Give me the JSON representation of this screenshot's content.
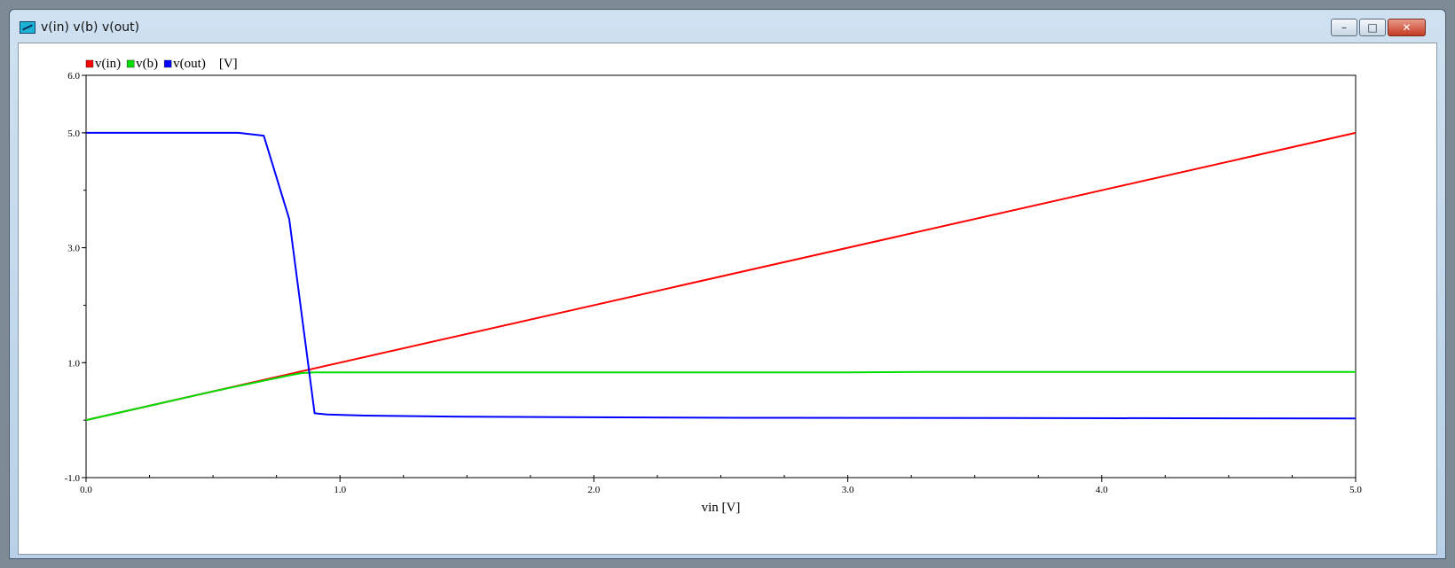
{
  "window": {
    "title": "v(in) v(b) v(out)",
    "minimize_glyph": "–",
    "maximize_glyph": "□",
    "close_glyph": "✕"
  },
  "chart_data": {
    "type": "line",
    "xlabel": "vin [V]",
    "ylabel": "",
    "unit_label": "[V]",
    "xlim": [
      0,
      5
    ],
    "ylim": [
      -1,
      6
    ],
    "x_ticks": [
      "0.0",
      "1.0",
      "2.0",
      "3.0",
      "4.0",
      "5.0"
    ],
    "y_ticks": [
      "-1.0",
      "1.0",
      "3.0",
      "5.0",
      "6.0"
    ],
    "grid": false,
    "legend_position": "top-left",
    "series": [
      {
        "name": "v(in)",
        "color": "#ff0000",
        "x": [
          0,
          5
        ],
        "y": [
          0,
          5
        ]
      },
      {
        "name": "v(b)",
        "color": "#00dd00",
        "x": [
          0,
          0.5,
          0.8,
          0.85,
          0.9,
          1.0,
          2.0,
          3.0,
          3.3,
          4.0,
          5.0
        ],
        "y": [
          0,
          0.5,
          0.78,
          0.82,
          0.83,
          0.83,
          0.83,
          0.83,
          0.84,
          0.84,
          0.84
        ]
      },
      {
        "name": "v(out)",
        "color": "#0000ff",
        "x": [
          0,
          0.6,
          0.7,
          0.8,
          0.9,
          0.95,
          1.1,
          1.5,
          2.6,
          5.0
        ],
        "y": [
          5.0,
          5.0,
          4.95,
          3.5,
          0.12,
          0.1,
          0.08,
          0.06,
          0.04,
          0.03
        ]
      }
    ]
  }
}
